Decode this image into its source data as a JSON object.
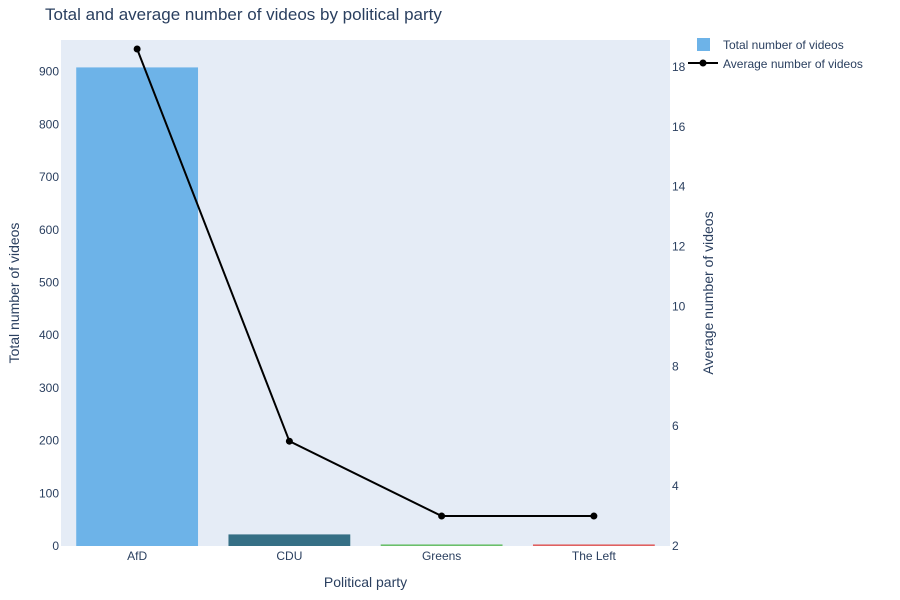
{
  "chart_data": {
    "type": "bar",
    "title": "Total and average number of videos by political party",
    "xlabel": "Political party",
    "ylabel": "Total number of videos",
    "y2label": "Average number of videos",
    "categories": [
      "AfD",
      "CDU",
      "Greens",
      "The Left"
    ],
    "series": [
      {
        "name": "Total number of videos",
        "type": "bar",
        "axis": "y",
        "values": [
          908,
          22,
          3,
          3
        ],
        "colors": [
          "#6db3e8",
          "#356f85",
          "#6abf6a",
          "#e06060"
        ]
      },
      {
        "name": "Average number of videos",
        "type": "line",
        "axis": "y2",
        "values": [
          18.6,
          5.5,
          3,
          3
        ],
        "color": "#000000"
      }
    ],
    "ylim": [
      0,
      960
    ],
    "y2lim": [
      2,
      18.9
    ],
    "yticks": [
      0,
      100,
      200,
      300,
      400,
      500,
      600,
      700,
      800,
      900
    ],
    "y2ticks": [
      2,
      4,
      6,
      8,
      10,
      12,
      14,
      16,
      18
    ],
    "plot_background": "#e5ecf6",
    "grid": false,
    "legend_position": "top-right"
  }
}
